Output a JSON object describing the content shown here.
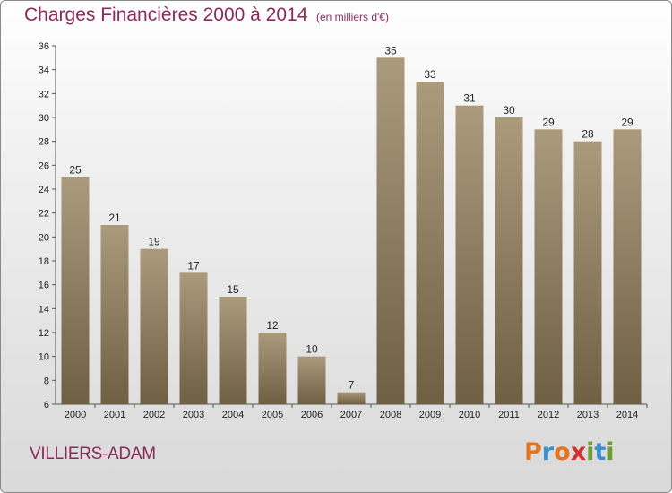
{
  "header": {
    "title": "Charges Financières 2000 à 2014",
    "subtitle": "(en milliers d'€)"
  },
  "footer": {
    "commune": "VILLIERS-ADAM",
    "logo_text": "Proxiti",
    "logo_colors": [
      "#e2751f",
      "#3a8fd1",
      "#e2751f",
      "#d03030",
      "#6aa12e",
      "#3a8fd1",
      "#6aa12e"
    ]
  },
  "colors": {
    "bar_top": "#ab9a7c",
    "bar_bottom": "#6f5f43",
    "text": "#8c2a57"
  },
  "chart_data": {
    "type": "bar",
    "categories": [
      "2000",
      "2001",
      "2002",
      "2003",
      "2004",
      "2005",
      "2006",
      "2007",
      "2008",
      "2009",
      "2010",
      "2011",
      "2012",
      "2013",
      "2014"
    ],
    "values": [
      25,
      21,
      19,
      17,
      15,
      12,
      10,
      7,
      35,
      33,
      31,
      30,
      29,
      28,
      29
    ],
    "title": "Charges Financières 2000 à 2014",
    "subtitle": "(en milliers d'€)",
    "ylim": [
      6,
      36
    ],
    "yticks": [
      6,
      8,
      10,
      12,
      14,
      16,
      18,
      20,
      22,
      24,
      26,
      28,
      30,
      32,
      34,
      36
    ],
    "grid": false,
    "legend": "none"
  }
}
